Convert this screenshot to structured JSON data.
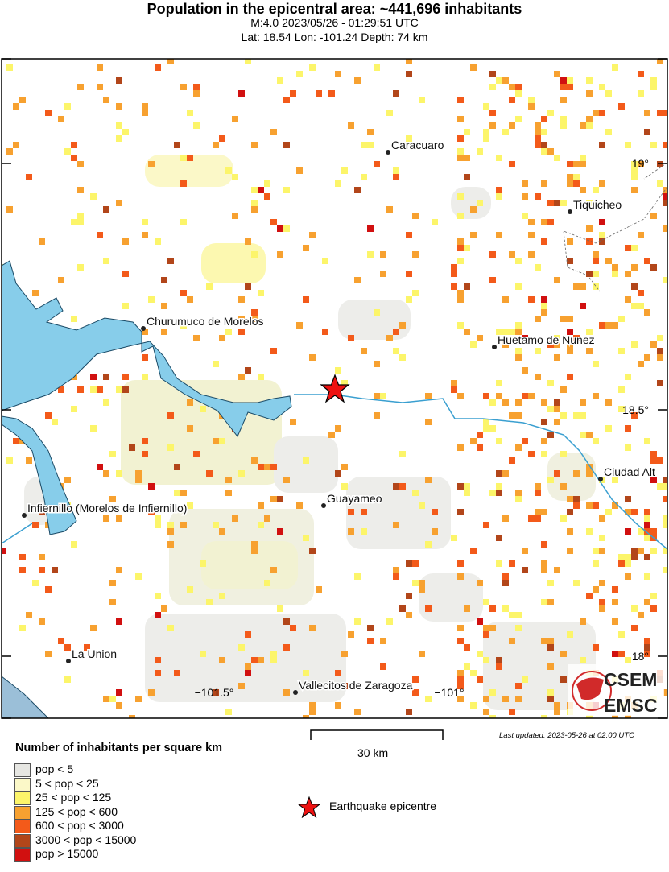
{
  "header": {
    "title": "Population in the epicentral area: ~441,696 inhabitants",
    "event": "M:4.0 2023/05/26 - 01:29:51 UTC",
    "location": "Lat: 18.54 Lon: -101.24 Depth: 74 km"
  },
  "map": {
    "cities": [
      {
        "name": "Caracuaro"
      },
      {
        "name": "Tiquicheo"
      },
      {
        "name": "Churumuco de Morelos"
      },
      {
        "name": "Huetamo de Nunez"
      },
      {
        "name": "Ciudad Alt"
      },
      {
        "name": "Guayameo"
      },
      {
        "name": "Infiernillo (Morelos de Infiernillo)"
      },
      {
        "name": "La Union"
      },
      {
        "name": "Vallecitos de Zaragoza"
      }
    ],
    "lat_ticks": [
      "19°",
      "18.5°",
      "18°"
    ],
    "lon_ticks": [
      "−101.5°",
      "−101°"
    ],
    "epicentre_icon": "red-star-icon",
    "colors": {
      "water": "#87cdea",
      "river": "#3a9fd0",
      "epicentre": "#ee1111"
    }
  },
  "scale": {
    "label": "30 km"
  },
  "last_updated": "Last updated: 2023-05-26 at 02:00 UTC",
  "logo": {
    "line1": "CSEM",
    "line2": "EMSC"
  },
  "legend": {
    "title": "Number of inhabitants per square km",
    "items": [
      {
        "label": "pop < 5",
        "color": "#e6e6e2"
      },
      {
        "label": "5 < pop < 25",
        "color": "#fbf8c8"
      },
      {
        "label": "25 < pop < 125",
        "color": "#fcf56a"
      },
      {
        "label": "125 < pop < 600",
        "color": "#f7a130"
      },
      {
        "label": "600 < pop < 3000",
        "color": "#f35a1a"
      },
      {
        "label": "3000 < pop < 15000",
        "color": "#b2461a"
      },
      {
        "label": "pop > 15000",
        "color": "#d11010"
      }
    ],
    "epicentre_label": "Earthquake epicentre"
  }
}
